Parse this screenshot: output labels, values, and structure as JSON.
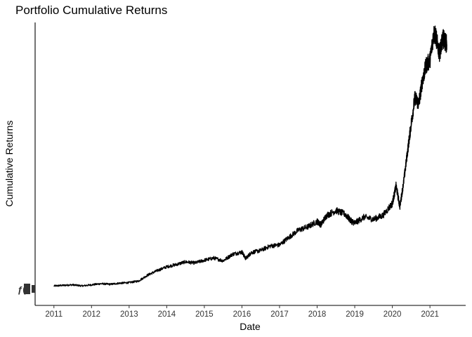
{
  "chart_data": {
    "type": "line",
    "title": "Portfolio Cumulative Returns",
    "xlabel": "Date",
    "ylabel": "Cumulative Returns",
    "x_ticks": [
      "2011",
      "2012",
      "2013",
      "2014",
      "2015",
      "2016",
      "2017",
      "2018",
      "2019",
      "2020",
      "2021"
    ],
    "xlim": [
      "2010.5",
      "2021.95"
    ],
    "ylim": [
      0,
      48
    ],
    "y_tick_labels_legible": false,
    "grid": false,
    "series": [
      {
        "x": [
          2011.0,
          2011.25,
          2011.5,
          2011.75,
          2012.0,
          2012.25,
          2012.5,
          2012.75,
          2013.0,
          2013.25,
          2013.5,
          2013.75,
          2014.0,
          2014.25,
          2014.5,
          2014.75,
          2015.0,
          2015.25,
          2015.5,
          2015.75,
          2016.0,
          2016.1,
          2016.25,
          2016.5,
          2016.75,
          2017.0,
          2017.25,
          2017.5,
          2017.75,
          2018.0,
          2018.1,
          2018.25,
          2018.5,
          2018.75,
          2018.9,
          2019.0,
          2019.25,
          2019.5,
          2019.75,
          2020.0,
          2020.1,
          2020.2,
          2020.3,
          2020.4,
          2020.5,
          2020.6,
          2020.7,
          2020.8,
          2020.9,
          2021.0,
          2021.1,
          2021.15,
          2021.25,
          2021.35,
          2021.45
        ],
        "y": [
          1.0,
          1.1,
          1.2,
          1.0,
          1.2,
          1.4,
          1.3,
          1.5,
          1.6,
          1.9,
          3.0,
          3.8,
          4.5,
          4.9,
          5.4,
          5.2,
          5.7,
          6.1,
          5.6,
          6.8,
          7.2,
          6.0,
          7.1,
          7.5,
          8.3,
          8.5,
          9.9,
          11.2,
          11.8,
          12.8,
          12.2,
          13.9,
          14.8,
          14.1,
          12.9,
          12.5,
          13.6,
          13.2,
          13.9,
          16.1,
          19.3,
          15.5,
          20.0,
          25.4,
          30.6,
          35.5,
          34.3,
          38.6,
          41.4,
          42.3,
          47.1,
          46.8,
          43.6,
          46.3,
          45.2
        ]
      }
    ]
  }
}
